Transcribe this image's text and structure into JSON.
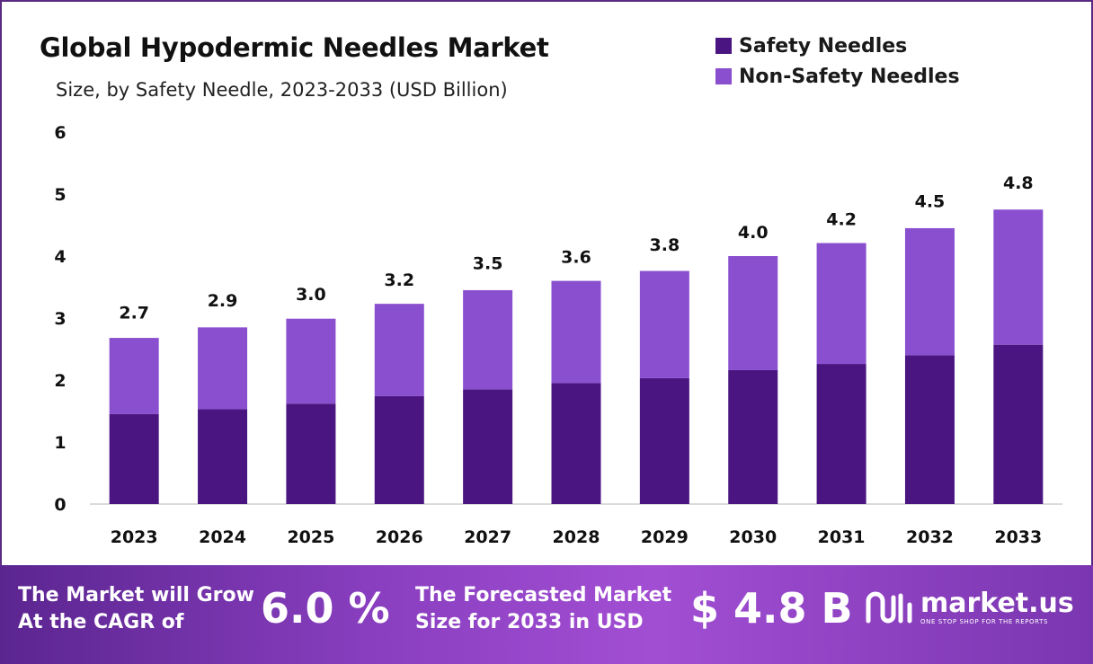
{
  "chart_data": {
    "type": "bar",
    "stacked": true,
    "title": "Global Hypodermic Needles Market",
    "subtitle": "Size, by Safety Needle, 2023-2033 (USD Billion)",
    "categories": [
      "2023",
      "2024",
      "2025",
      "2026",
      "2027",
      "2028",
      "2029",
      "2030",
      "2031",
      "2032",
      "2033"
    ],
    "series": [
      {
        "name": "Safety Needles",
        "color": "#4a1580",
        "values": [
          1.45,
          1.53,
          1.62,
          1.74,
          1.85,
          1.95,
          2.03,
          2.16,
          2.26,
          2.4,
          2.57
        ]
      },
      {
        "name": "Non-Safety Needles",
        "color": "#8a4fcf",
        "values": [
          1.23,
          1.32,
          1.37,
          1.49,
          1.6,
          1.65,
          1.73,
          1.84,
          1.95,
          2.05,
          2.18
        ]
      }
    ],
    "totals": [
      "2.7",
      "2.9",
      "3.0",
      "3.2",
      "3.5",
      "3.6",
      "3.8",
      "4.0",
      "4.2",
      "4.5",
      "4.8"
    ],
    "ylim": [
      0,
      6
    ],
    "yticks": [
      "0",
      "1",
      "2",
      "3",
      "4",
      "5",
      "6"
    ],
    "grid": false,
    "legend_position": "top-right"
  },
  "footer": {
    "cagr_label_line1": "The Market will Grow",
    "cagr_label_line2": "At the CAGR of",
    "cagr_value": "6.0 %",
    "forecast_label_line1": "The Forecasted Market",
    "forecast_label_line2": "Size for 2033 in USD",
    "forecast_value": "$ 4.8 B"
  },
  "brand": {
    "name": "market.us",
    "tagline": "ONE STOP SHOP FOR THE REPORTS",
    "logo_icon": "market-us-logo-icon"
  }
}
